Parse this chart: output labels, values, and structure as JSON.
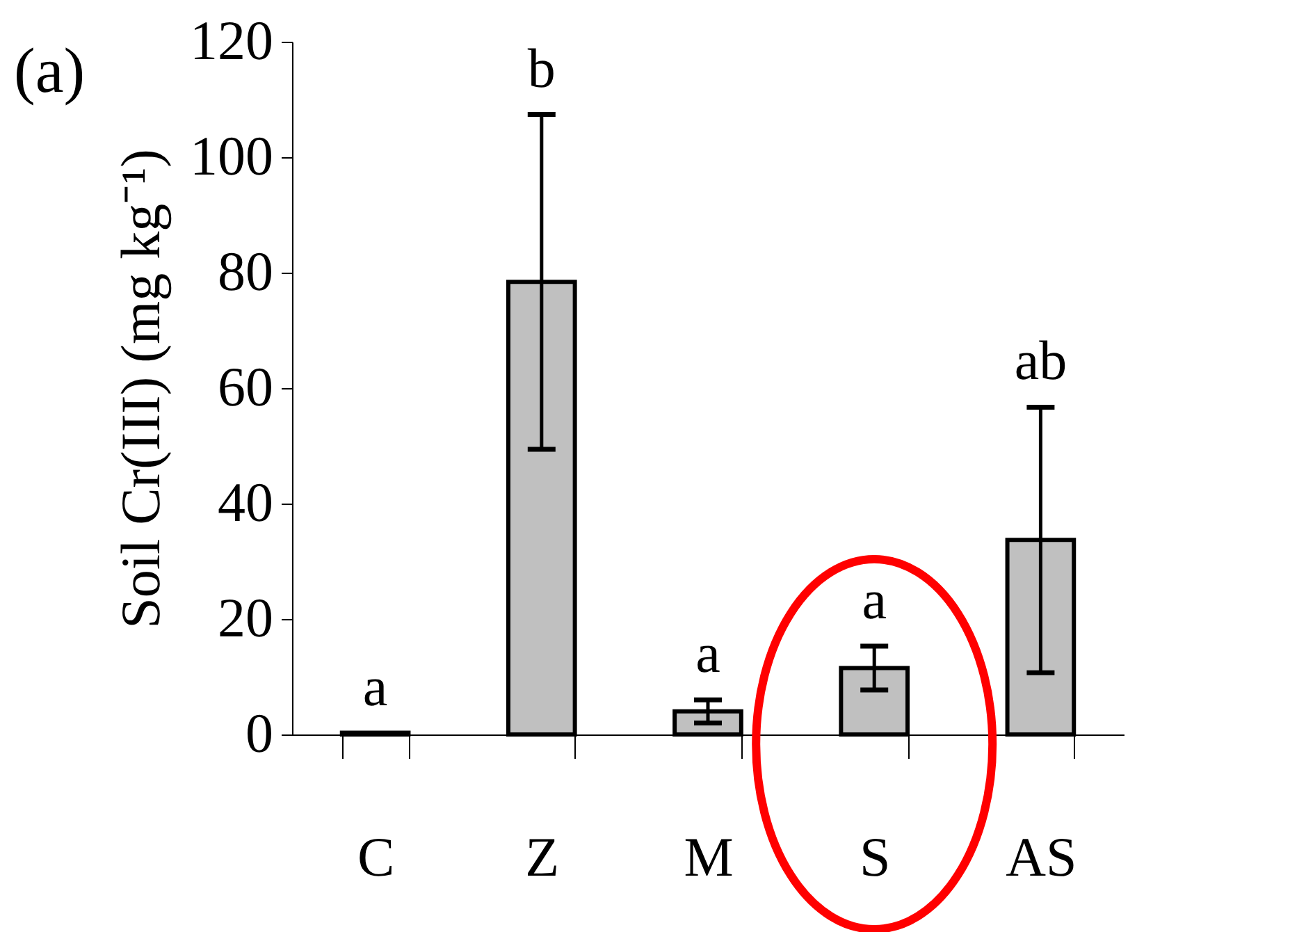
{
  "chart_data": {
    "type": "bar",
    "ylabel": "Soil Cr(III) (mg kg⁻¹)",
    "categories": [
      "C",
      "Z",
      "M",
      "S",
      "AS"
    ],
    "values": [
      0.3,
      78.4,
      4.0,
      11.5,
      33.7
    ],
    "errors": [
      null,
      29,
      2,
      3.8,
      23
    ],
    "color": "#c0c0c0",
    "ylim": [
      0,
      120
    ],
    "yticks": [
      0,
      20,
      40,
      60,
      80,
      100,
      120
    ],
    "grid": false,
    "annotations": [
      "(a)",
      {
        "text": "a",
        "x": "C",
        "y": 0.3
      },
      {
        "text": "b",
        "x": "Z",
        "y": 107.4
      },
      {
        "text": "a",
        "x": "M",
        "y": 6
      },
      {
        "text": "a",
        "x": "S",
        "y": 15.3
      },
      {
        "text": "ab",
        "x": "AS",
        "y": 56.7
      }
    ]
  }
}
